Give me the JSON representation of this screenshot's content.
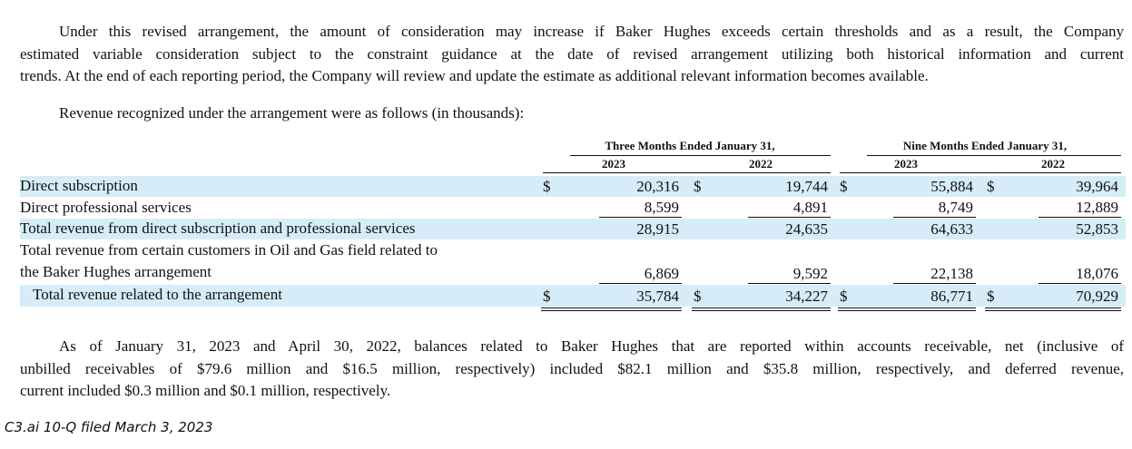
{
  "paragraphs": [
    {
      "lines": [
        "Under this revised arrangement, the amount of consideration may increase if Baker Hughes exceeds certain thresholds and as a result, the Company",
        "estimated variable consideration subject to the constraint guidance at the date of revised arrangement utilizing both historical information and current",
        "trends. At the end of each reporting period, the Company will review and update the estimate as additional relevant information becomes available."
      ]
    },
    {
      "lines": [
        "Revenue recognized under the arrangement were as follows (in thousands):"
      ]
    },
    {
      "lines": [
        "As of January 31, 2023 and April 30, 2022, balances related to Baker Hughes that are reported within accounts receivable, net (inclusive of",
        "unbilled receivables of $79.6 million and $16.5 million, respectively) included $82.1 million and $35.8 million, respectively, and deferred revenue,",
        "current included $0.3 million and $0.1 million, respectively."
      ]
    }
  ],
  "table": {
    "groups": [
      {
        "label": "Three Months Ended January 31,",
        "years": [
          "2023",
          "2022"
        ]
      },
      {
        "label": "Nine Months Ended January 31,",
        "years": [
          "2023",
          "2022"
        ]
      }
    ],
    "rows": [
      {
        "label": [
          "Direct subscription"
        ],
        "cells": [
          {
            "currency": "$",
            "value": "20,316"
          },
          {
            "currency": "$",
            "value": "19,744"
          },
          {
            "currency": "$",
            "value": "55,884"
          },
          {
            "currency": "$",
            "value": "39,964"
          }
        ]
      },
      {
        "label": [
          "Direct professional services"
        ],
        "cells": [
          {
            "value": "8,599"
          },
          {
            "value": "4,891"
          },
          {
            "value": "8,749"
          },
          {
            "value": "12,889"
          }
        ]
      },
      {
        "label": [
          "Total revenue from direct subscription and professional services"
        ],
        "cells": [
          {
            "value": "28,915"
          },
          {
            "value": "24,635"
          },
          {
            "value": "64,633"
          },
          {
            "value": "52,853"
          }
        ]
      },
      {
        "label": [
          "Total revenue from certain customers in Oil and Gas field related to",
          "the Baker Hughes arrangement"
        ],
        "cells": [
          {
            "value": "6,869"
          },
          {
            "value": "9,592"
          },
          {
            "value": "22,138"
          },
          {
            "value": "18,076"
          }
        ]
      },
      {
        "label": [
          "Total revenue related to the arrangement"
        ],
        "cells": [
          {
            "currency": "$",
            "value": "35,784"
          },
          {
            "currency": "$",
            "value": "34,227"
          },
          {
            "currency": "$",
            "value": "86,771"
          },
          {
            "currency": "$",
            "value": "70,929"
          }
        ]
      }
    ]
  },
  "footer": "C3.ai 10-Q filed March 3, 2023"
}
